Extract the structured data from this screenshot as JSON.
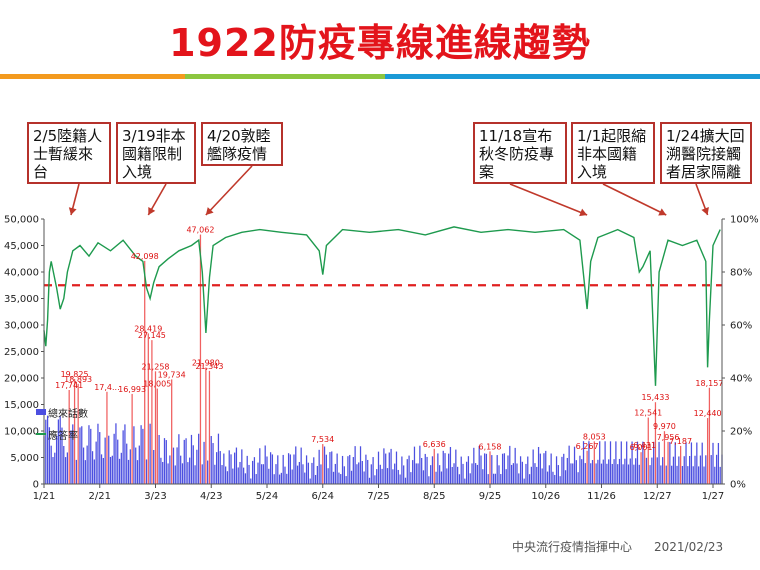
{
  "title": "1922防疫專線進線趨勢",
  "footer": {
    "source": "中央流行疫情指揮中心",
    "date": "2021/02/23"
  },
  "colors": {
    "title": "#e3141b",
    "bars": "#4c4fe0",
    "highlight_bars": "#f06060",
    "answer_rate": "#1e9a4e",
    "threshold": "#e02020",
    "annotation_border": "#b5312b",
    "annotation_arrow": "#c0392b"
  },
  "annotations": [
    {
      "text": "2/5陸籍人士暫緩來台",
      "date": "2020-02-05"
    },
    {
      "text": "3/19非本國籍限制入境",
      "date": "2020-03-19"
    },
    {
      "text": "4/20敦睦艦隊疫情",
      "date": "2020-04-20"
    },
    {
      "text": "11/18宣布秋冬防疫專案",
      "date": "2020-11-18"
    },
    {
      "text": "1/1起限縮非本國籍入境",
      "date": "2021-01-01"
    },
    {
      "text": "1/24擴大回溯醫院接觸者居家隔離",
      "date": "2021-01-24"
    }
  ],
  "chart_data": {
    "type": "bar",
    "x_range": [
      "2020-01-21",
      "2021-02-01"
    ],
    "xticks": [
      "1/21",
      "2/21",
      "3/23",
      "4/23",
      "5/24",
      "6/24",
      "7/25",
      "8/25",
      "9/25",
      "10/26",
      "11/26",
      "12/27",
      "1/27"
    ],
    "ylim_left": [
      0,
      50000
    ],
    "yticks_left": [
      "0",
      "5,000",
      "10,000",
      "15,000",
      "20,000",
      "25,000",
      "30,000",
      "35,000",
      "40,000",
      "45,000",
      "50,000"
    ],
    "ylim_right": [
      0,
      100
    ],
    "yticks_right": [
      "0%",
      "20%",
      "40%",
      "60%",
      "80%",
      "100%"
    ],
    "threshold_percent": 75,
    "legend": [
      {
        "name": "總來話數",
        "color": "#4c4fe0"
      },
      {
        "name": "應答率",
        "color": "#1e9a4e"
      }
    ],
    "legend_position": "left",
    "series": [
      {
        "name": "總來話數",
        "axis": "left",
        "type": "bar"
      },
      {
        "name": "應答率",
        "axis": "right",
        "type": "line"
      }
    ],
    "labeled_calls": [
      {
        "date": "2020-02-04",
        "value": 17741,
        "label": "17,741"
      },
      {
        "date": "2020-02-07",
        "value": 19825,
        "label": "19,825"
      },
      {
        "date": "2020-02-09",
        "value": 18893,
        "label": "18,893"
      },
      {
        "date": "2020-02-25",
        "value": 17400,
        "label": "17,4..."
      },
      {
        "date": "2020-03-10",
        "value": 16993,
        "label": "16,993"
      },
      {
        "date": "2020-03-17",
        "value": 42098,
        "label": "42,098"
      },
      {
        "date": "2020-03-19",
        "value": 28419,
        "label": "28,419"
      },
      {
        "date": "2020-03-21",
        "value": 27145,
        "label": "27,145"
      },
      {
        "date": "2020-03-23",
        "value": 21258,
        "label": "21,258"
      },
      {
        "date": "2020-03-24",
        "value": 18005,
        "label": "18,005"
      },
      {
        "date": "2020-04-01",
        "value": 19734,
        "label": "19,734"
      },
      {
        "date": "2020-04-17",
        "value": 47062,
        "label": "47,062"
      },
      {
        "date": "2020-04-20",
        "value": 21980,
        "label": "21,980"
      },
      {
        "date": "2020-04-22",
        "value": 21343,
        "label": "21,343"
      },
      {
        "date": "2020-06-24",
        "value": 7534,
        "label": "7,534"
      },
      {
        "date": "2020-08-25",
        "value": 6636,
        "label": "6,636"
      },
      {
        "date": "2020-09-25",
        "value": 6158,
        "label": "6,158"
      },
      {
        "date": "2020-11-18",
        "value": 6267,
        "label": "6,267"
      },
      {
        "date": "2020-11-22",
        "value": 8053,
        "label": "8,053"
      },
      {
        "date": "2020-12-18",
        "value": 6001,
        "label": "6,001"
      },
      {
        "date": "2020-12-20",
        "value": 6431,
        "label": "6,431"
      },
      {
        "date": "2020-12-22",
        "value": 12541,
        "label": "12,541"
      },
      {
        "date": "2020-12-26",
        "value": 15433,
        "label": "15,433"
      },
      {
        "date": "2020-12-31",
        "value": 9970,
        "label": "9,970"
      },
      {
        "date": "2021-01-02",
        "value": 7956,
        "label": "7,956"
      },
      {
        "date": "2021-01-09",
        "value": 7187,
        "label": "7,187"
      },
      {
        "date": "2021-01-24",
        "value": 12440,
        "label": "12,440"
      },
      {
        "date": "2021-01-25",
        "value": 18157,
        "label": "18,157"
      }
    ],
    "answer_rate_points": [
      [
        "2020-01-21",
        58
      ],
      [
        "2020-01-22",
        52
      ],
      [
        "2020-01-23",
        62
      ],
      [
        "2020-01-24",
        80
      ],
      [
        "2020-01-25",
        84
      ],
      [
        "2020-01-28",
        74
      ],
      [
        "2020-01-30",
        66
      ],
      [
        "2020-02-01",
        70
      ],
      [
        "2020-02-03",
        80
      ],
      [
        "2020-02-06",
        88
      ],
      [
        "2020-02-10",
        90
      ],
      [
        "2020-02-15",
        86
      ],
      [
        "2020-02-20",
        91
      ],
      [
        "2020-02-27",
        88
      ],
      [
        "2020-03-05",
        92
      ],
      [
        "2020-03-12",
        86
      ],
      [
        "2020-03-16",
        84
      ],
      [
        "2020-03-18",
        74
      ],
      [
        "2020-03-20",
        70
      ],
      [
        "2020-03-22",
        76
      ],
      [
        "2020-03-25",
        82
      ],
      [
        "2020-03-30",
        85
      ],
      [
        "2020-04-05",
        88
      ],
      [
        "2020-04-12",
        90
      ],
      [
        "2020-04-16",
        92
      ],
      [
        "2020-04-18",
        80
      ],
      [
        "2020-04-20",
        57
      ],
      [
        "2020-04-22",
        78
      ],
      [
        "2020-04-24",
        90
      ],
      [
        "2020-05-01",
        93
      ],
      [
        "2020-05-10",
        95
      ],
      [
        "2020-05-20",
        96
      ],
      [
        "2020-06-01",
        95
      ],
      [
        "2020-06-15",
        94
      ],
      [
        "2020-06-22",
        88
      ],
      [
        "2020-06-24",
        79
      ],
      [
        "2020-06-26",
        90
      ],
      [
        "2020-07-05",
        96
      ],
      [
        "2020-07-20",
        95
      ],
      [
        "2020-08-05",
        96
      ],
      [
        "2020-08-20",
        94
      ],
      [
        "2020-09-05",
        97
      ],
      [
        "2020-09-20",
        95
      ],
      [
        "2020-10-05",
        96
      ],
      [
        "2020-10-20",
        95
      ],
      [
        "2020-11-05",
        96
      ],
      [
        "2020-11-14",
        92
      ],
      [
        "2020-11-18",
        66
      ],
      [
        "2020-11-20",
        84
      ],
      [
        "2020-11-24",
        93
      ],
      [
        "2020-12-05",
        96
      ],
      [
        "2020-12-14",
        93
      ],
      [
        "2020-12-17",
        80
      ],
      [
        "2020-12-19",
        82
      ],
      [
        "2020-12-23",
        88
      ],
      [
        "2020-12-26",
        37
      ],
      [
        "2020-12-28",
        80
      ],
      [
        "2021-01-02",
        92
      ],
      [
        "2021-01-10",
        90
      ],
      [
        "2021-01-18",
        92
      ],
      [
        "2021-01-23",
        84
      ],
      [
        "2021-01-24",
        44
      ],
      [
        "2021-01-25",
        62
      ],
      [
        "2021-01-27",
        90
      ],
      [
        "2021-01-31",
        96
      ]
    ]
  }
}
